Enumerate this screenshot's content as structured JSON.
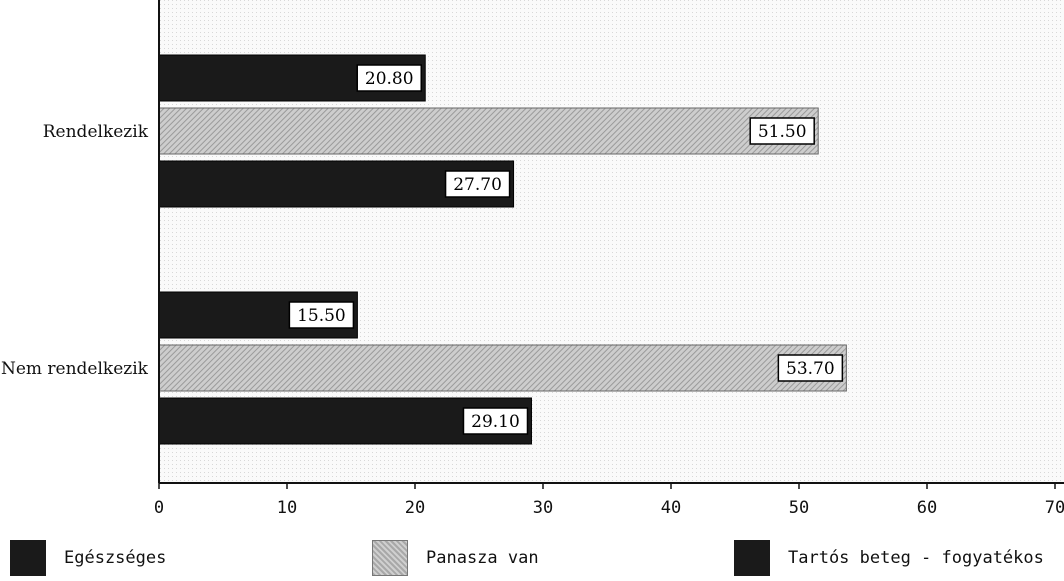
{
  "chart_data": {
    "type": "bar",
    "orientation": "horizontal",
    "title": "",
    "categories": [
      "Rendelkezik",
      "Nem rendelkezik"
    ],
    "series": [
      {
        "name": "Egészséges",
        "values": [
          20.8,
          15.5
        ],
        "color": "#1a1a1a"
      },
      {
        "name": "Panasza van",
        "values": [
          51.5,
          53.7
        ],
        "color": "#b4b4b4"
      },
      {
        "name": "Tartós beteg - fogyatékos",
        "values": [
          27.7,
          29.1
        ],
        "color": "#1a1a1a"
      }
    ],
    "value_labels": [
      [
        "20.80",
        "15.50"
      ],
      [
        "51.50",
        "53.70"
      ],
      [
        "27.70",
        "29.10"
      ]
    ],
    "xlim": [
      0,
      70
    ],
    "xticks": [
      "0",
      "10",
      "20",
      "30",
      "40",
      "50",
      "60",
      "70"
    ],
    "xlabel": "",
    "ylabel": "",
    "grid": false,
    "legend_position": "bottom"
  }
}
